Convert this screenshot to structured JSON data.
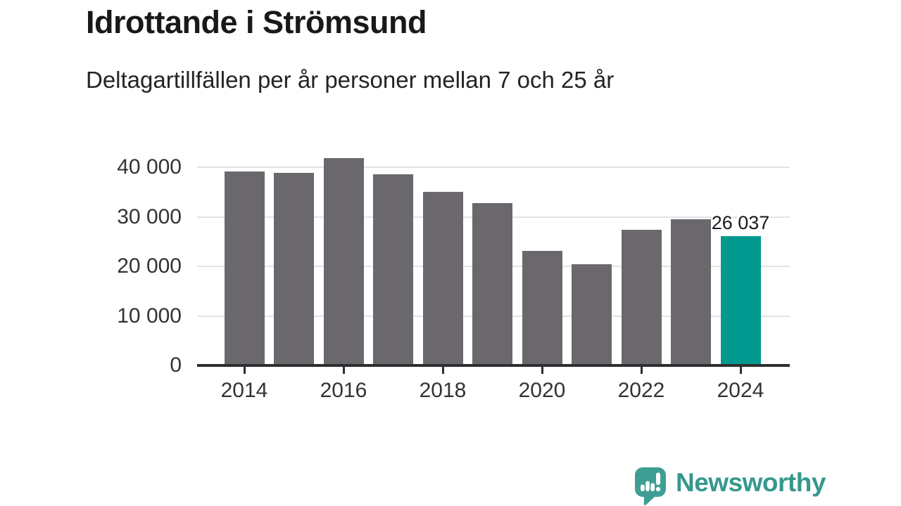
{
  "chart_data": {
    "type": "bar",
    "title": "Idrottande i Strömsund",
    "subtitle": "Deltagartillfällen per år personer mellan 7 och 25 år",
    "categories": [
      "2014",
      "2015",
      "2016",
      "2017",
      "2018",
      "2019",
      "2020",
      "2021",
      "2022",
      "2023",
      "2024"
    ],
    "values": [
      39100,
      38800,
      41900,
      38600,
      35100,
      32800,
      23100,
      20400,
      27400,
      29500,
      26037
    ],
    "highlighted_category": "2024",
    "highlighted_value": 26037,
    "data_label": {
      "category": "2024",
      "text": "26 037"
    },
    "xlabel": "",
    "ylabel": "",
    "ylim": [
      0,
      44000
    ],
    "yticks": [
      0,
      10000,
      20000,
      30000,
      40000
    ],
    "ytick_labels": [
      "0",
      "10 000",
      "20 000",
      "30 000",
      "40 000"
    ],
    "xtick_labels": [
      "2014",
      "2016",
      "2018",
      "2020",
      "2022",
      "2024"
    ],
    "grid": "horizontal-only",
    "legend": "none",
    "colors": {
      "bar": "#6b686d",
      "highlight": "#00998f",
      "gridline": "#e3e3e3",
      "axis": "#2e2e2e",
      "tick_text": "#333333",
      "label_text": "#1a1a1a"
    }
  },
  "branding": {
    "logo_icon": "newsworthy-speech-bubble-chart-icon",
    "logo_text": "Newsworthy",
    "logo_color": "#3f9e93",
    "logo_text_color": "#35988d"
  }
}
